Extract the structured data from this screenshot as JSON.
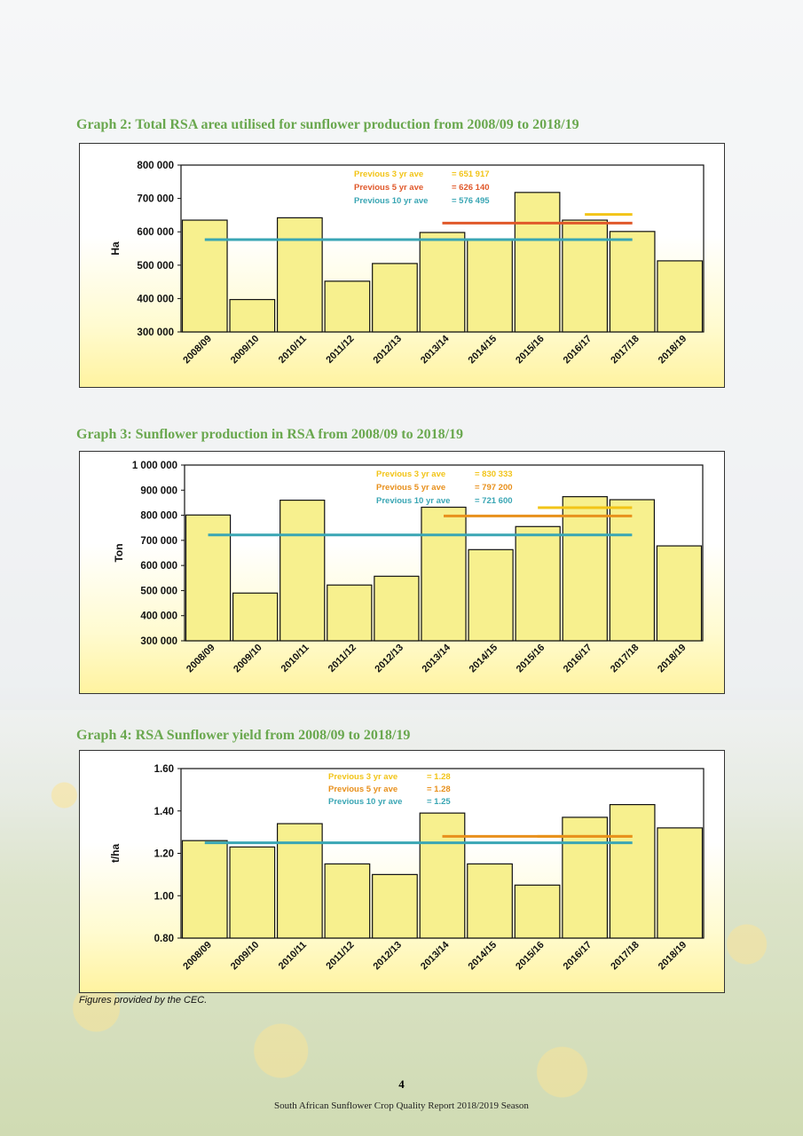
{
  "page": {
    "credit": "Figures provided by the CEC.",
    "page_number": "4",
    "footer": "South African Sunflower Crop Quality Report 2018/2019 Season"
  },
  "colors": {
    "bar_fill": "#f7f08e",
    "bar_stroke": "#111111",
    "avg3": "#f2c418",
    "avg5": "#e0582a",
    "avg10": "#3aa6b4",
    "avg5_graph4": "#e8901c"
  },
  "chart_data": [
    {
      "type": "bar",
      "title": "Graph 2:  Total RSA area utilised for sunflower production from 2008/09 to 2018/19",
      "ylabel": "Ha",
      "ylim": [
        300000,
        800000
      ],
      "yticks": [
        300000,
        400000,
        500000,
        600000,
        700000,
        800000
      ],
      "ytick_labels": [
        "300 000",
        "400 000",
        "500 000",
        "600 000",
        "700 000",
        "800 000"
      ],
      "categories": [
        "2008/09",
        "2009/10",
        "2010/11",
        "2011/12",
        "2012/13",
        "2013/14",
        "2014/15",
        "2015/16",
        "2016/17",
        "2017/18",
        "2018/19"
      ],
      "values": [
        635000,
        397000,
        642000,
        452000,
        505000,
        598000,
        578000,
        718000,
        635000,
        601000,
        513000
      ],
      "averages": [
        {
          "label": "Previous 3 yr ave",
          "value_label": "= 651 917",
          "value": 651917,
          "from": "2016/17",
          "to": "2017/18",
          "color": "#f2c418"
        },
        {
          "label": "Previous 5 yr ave",
          "value_label": "= 626 140",
          "value": 626140,
          "from": "2013/14",
          "to": "2017/18",
          "color": "#e0582a"
        },
        {
          "label": "Previous 10 yr ave",
          "value_label": "= 576 495",
          "value": 576495,
          "from": "2008/09",
          "to": "2017/18",
          "color": "#3aa6b4"
        }
      ]
    },
    {
      "type": "bar",
      "title": "Graph 3:  Sunflower production in RSA from 2008/09 to 2018/19",
      "ylabel": "Ton",
      "ylim": [
        300000,
        1000000
      ],
      "yticks": [
        300000,
        400000,
        500000,
        600000,
        700000,
        800000,
        900000,
        1000000
      ],
      "ytick_labels": [
        "300 000",
        "400 000",
        "500 000",
        "600 000",
        "700 000",
        "800 000",
        "900 000",
        "1 000 000"
      ],
      "categories": [
        "2008/09",
        "2009/10",
        "2010/11",
        "2011/12",
        "2012/13",
        "2013/14",
        "2014/15",
        "2015/16",
        "2016/17",
        "2017/18",
        "2018/19"
      ],
      "values": [
        801000,
        490000,
        860000,
        522000,
        557000,
        832000,
        663000,
        755000,
        874000,
        862000,
        678000
      ],
      "averages": [
        {
          "label": "Previous 3 yr ave",
          "value_label": "= 830 333",
          "value": 830333,
          "from": "2015/16",
          "to": "2017/18",
          "color": "#f2c418"
        },
        {
          "label": "Previous 5 yr ave",
          "value_label": "= 797 200",
          "value": 797200,
          "from": "2013/14",
          "to": "2017/18",
          "color": "#e8901c"
        },
        {
          "label": "Previous 10 yr ave",
          "value_label": "= 721 600",
          "value": 721600,
          "from": "2008/09",
          "to": "2017/18",
          "color": "#3aa6b4"
        }
      ]
    },
    {
      "type": "bar",
      "title": "Graph 4:  RSA Sunflower yield from 2008/09 to 2018/19",
      "ylabel": "t/ha",
      "ylim": [
        0.8,
        1.6
      ],
      "yticks": [
        0.8,
        1.0,
        1.2,
        1.4,
        1.6
      ],
      "ytick_labels": [
        "0.80",
        "1.00",
        "1.20",
        "1.40",
        "1.60"
      ],
      "categories": [
        "2008/09",
        "2009/10",
        "2010/11",
        "2011/12",
        "2012/13",
        "2013/14",
        "2014/15",
        "2015/16",
        "2016/17",
        "2017/18",
        "2018/19"
      ],
      "values": [
        1.26,
        1.23,
        1.34,
        1.15,
        1.1,
        1.39,
        1.15,
        1.05,
        1.37,
        1.43,
        1.32
      ],
      "averages": [
        {
          "label": "Previous 3 yr ave",
          "value_label": "= 1.28",
          "value": 1.28,
          "from": "2015/16",
          "to": "2017/18",
          "color": "#f2c418"
        },
        {
          "label": "Previous 5 yr ave",
          "value_label": "= 1.28",
          "value": 1.28,
          "from": "2013/14",
          "to": "2017/18",
          "color": "#e8901c"
        },
        {
          "label": "Previous 10 yr ave",
          "value_label": "= 1.25",
          "value": 1.25,
          "from": "2008/09",
          "to": "2017/18",
          "color": "#3aa6b4"
        }
      ]
    }
  ]
}
